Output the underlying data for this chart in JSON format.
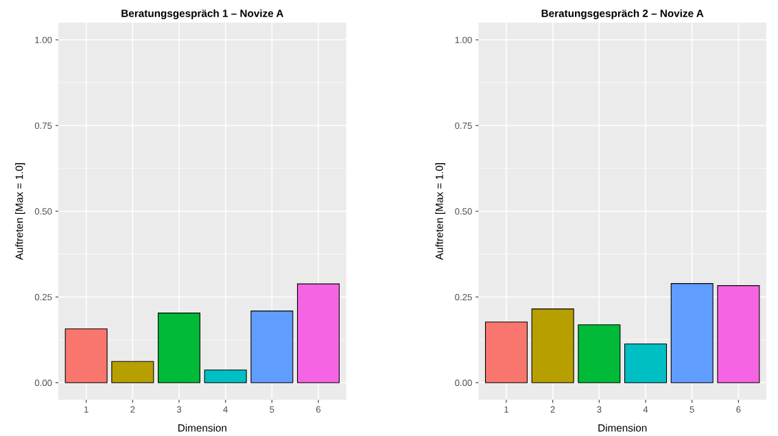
{
  "chart_data": [
    {
      "type": "bar",
      "title": "Beratungsgespräch 1 – Novize A",
      "xlabel": "Dimension",
      "ylabel": "Auftreten [Max = 1.0]",
      "categories": [
        "1",
        "2",
        "3",
        "4",
        "5",
        "6"
      ],
      "values": [
        0.157,
        0.062,
        0.203,
        0.037,
        0.209,
        0.288
      ],
      "colors": [
        "#f8766d",
        "#b79f00",
        "#00ba38",
        "#00bfc4",
        "#619cff",
        "#f564e3"
      ],
      "ylim": [
        -0.05,
        1.05
      ],
      "yticks": [
        {
          "value": 0,
          "label": "0.00"
        },
        {
          "value": 0.25,
          "label": "0.25"
        },
        {
          "value": 0.5,
          "label": "0.50"
        },
        {
          "value": 0.75,
          "label": "0.75"
        },
        {
          "value": 1,
          "label": "1.00"
        }
      ],
      "grid": true
    },
    {
      "type": "bar",
      "title": "Beratungsgespräch 2 – Novize A",
      "xlabel": "Dimension",
      "ylabel": "Auftreten [Max = 1.0]",
      "categories": [
        "1",
        "2",
        "3",
        "4",
        "5",
        "6"
      ],
      "values": [
        0.177,
        0.215,
        0.169,
        0.113,
        0.289,
        0.283
      ],
      "colors": [
        "#f8766d",
        "#b79f00",
        "#00ba38",
        "#00bfc4",
        "#619cff",
        "#f564e3"
      ],
      "ylim": [
        -0.05,
        1.05
      ],
      "yticks": [
        {
          "value": 0,
          "label": "0.00"
        },
        {
          "value": 0.25,
          "label": "0.25"
        },
        {
          "value": 0.5,
          "label": "0.50"
        },
        {
          "value": 0.75,
          "label": "0.75"
        },
        {
          "value": 1,
          "label": "1.00"
        }
      ],
      "grid": true
    }
  ]
}
